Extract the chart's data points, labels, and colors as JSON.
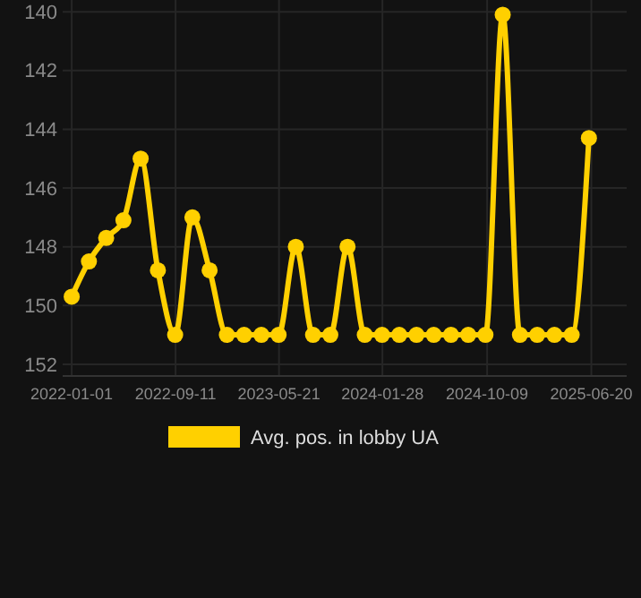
{
  "chart_data": {
    "type": "line",
    "x": [
      "2022-01-01",
      "2022-02-12",
      "2022-03-26",
      "2022-05-07",
      "2022-06-18",
      "2022-07-30",
      "2022-09-10",
      "2022-10-22",
      "2022-12-03",
      "2023-01-14",
      "2023-02-25",
      "2023-04-08",
      "2023-05-20",
      "2023-07-01",
      "2023-08-12",
      "2023-09-23",
      "2023-11-04",
      "2023-12-16",
      "2024-01-27",
      "2024-03-09",
      "2024-04-20",
      "2024-06-01",
      "2024-07-13",
      "2024-08-24",
      "2024-10-05",
      "2024-11-16",
      "2024-12-28",
      "2025-02-08",
      "2025-03-22",
      "2025-05-03",
      "2025-06-14"
    ],
    "series": [
      {
        "name": "Avg. pos. in lobby UA",
        "color": "#ffd000",
        "values": [
          149.7,
          148.5,
          147.7,
          147.1,
          145,
          148.8,
          151,
          147,
          148.8,
          151,
          151,
          151,
          151,
          148,
          151,
          151,
          148,
          151,
          151,
          151,
          151,
          151,
          151,
          151,
          151,
          140.1,
          151,
          151,
          151,
          151,
          144.3
        ]
      }
    ],
    "xlim": [
      "2021-12-10",
      "2025-09-14"
    ],
    "xticks": [
      "2022-01-01",
      "2022-09-11",
      "2023-05-21",
      "2024-01-28",
      "2024-10-09",
      "2025-06-20"
    ],
    "ylim": [
      152.4,
      139.6
    ],
    "yticks": [
      140,
      142,
      144,
      146,
      148,
      150,
      152
    ],
    "grid": true,
    "legend": "bottom",
    "marker": "circle",
    "line_style": "solid"
  }
}
